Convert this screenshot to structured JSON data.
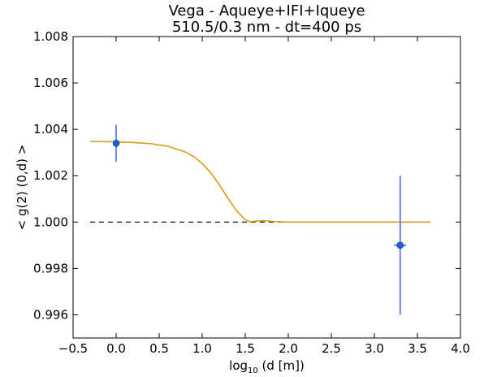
{
  "chart_data": {
    "type": "scatter",
    "title": "Vega - Aqueye+IFI+Iqueye",
    "subtitle": "510.5/0.3 nm - dt=400 ps",
    "xlabel_main": "log",
    "xlabel_sub": "10",
    "xlabel_rest": " (d [m])",
    "ylabel": "< g(2) (0,d) >",
    "xlim": [
      -0.5,
      4.0
    ],
    "ylim": [
      0.995,
      1.008
    ],
    "xticks": [
      -0.5,
      0.0,
      0.5,
      1.0,
      1.5,
      2.0,
      2.5,
      3.0,
      3.5,
      4.0
    ],
    "xtick_labels": [
      "−0.5",
      "0.0",
      "0.5",
      "1.0",
      "1.5",
      "2.0",
      "2.5",
      "3.0",
      "3.5",
      "4.0"
    ],
    "yticks": [
      0.996,
      0.998,
      1.0,
      1.002,
      1.004,
      1.006,
      1.008
    ],
    "ytick_labels": [
      "0.996",
      "0.998",
      "1.000",
      "1.002",
      "1.004",
      "1.006",
      "1.008"
    ],
    "grid": false,
    "reference_line": {
      "y": 1.0,
      "style": "dashed",
      "color": "#000000"
    },
    "series": [
      {
        "type": "errorbar",
        "color": "#1f5fd6",
        "errorbar_color": "#4a6ef0",
        "points": [
          {
            "x": 0.0,
            "y": 1.0034,
            "yerr": 0.0008,
            "xerr": 0.0
          },
          {
            "x": 3.3,
            "y": 0.999,
            "yerr": 0.003,
            "xerr": 0.07
          }
        ]
      },
      {
        "type": "line",
        "color": "#d4a017",
        "x": [
          -0.3,
          0.0,
          0.2,
          0.4,
          0.6,
          0.8,
          0.9,
          1.0,
          1.1,
          1.2,
          1.3,
          1.4,
          1.5,
          1.55,
          1.6,
          1.7,
          1.75,
          1.85,
          2.0,
          2.5,
          3.0,
          3.5,
          3.65
        ],
        "y": [
          1.00348,
          1.00346,
          1.00343,
          1.00338,
          1.00327,
          1.00303,
          1.00283,
          1.00253,
          1.00212,
          1.0016,
          1.00102,
          1.00048,
          1.0001,
          1.00002,
          1.00003,
          1.00006,
          1.00005,
          1.00002,
          1.0,
          1.0,
          1.0,
          1.0,
          1.0
        ]
      }
    ]
  }
}
